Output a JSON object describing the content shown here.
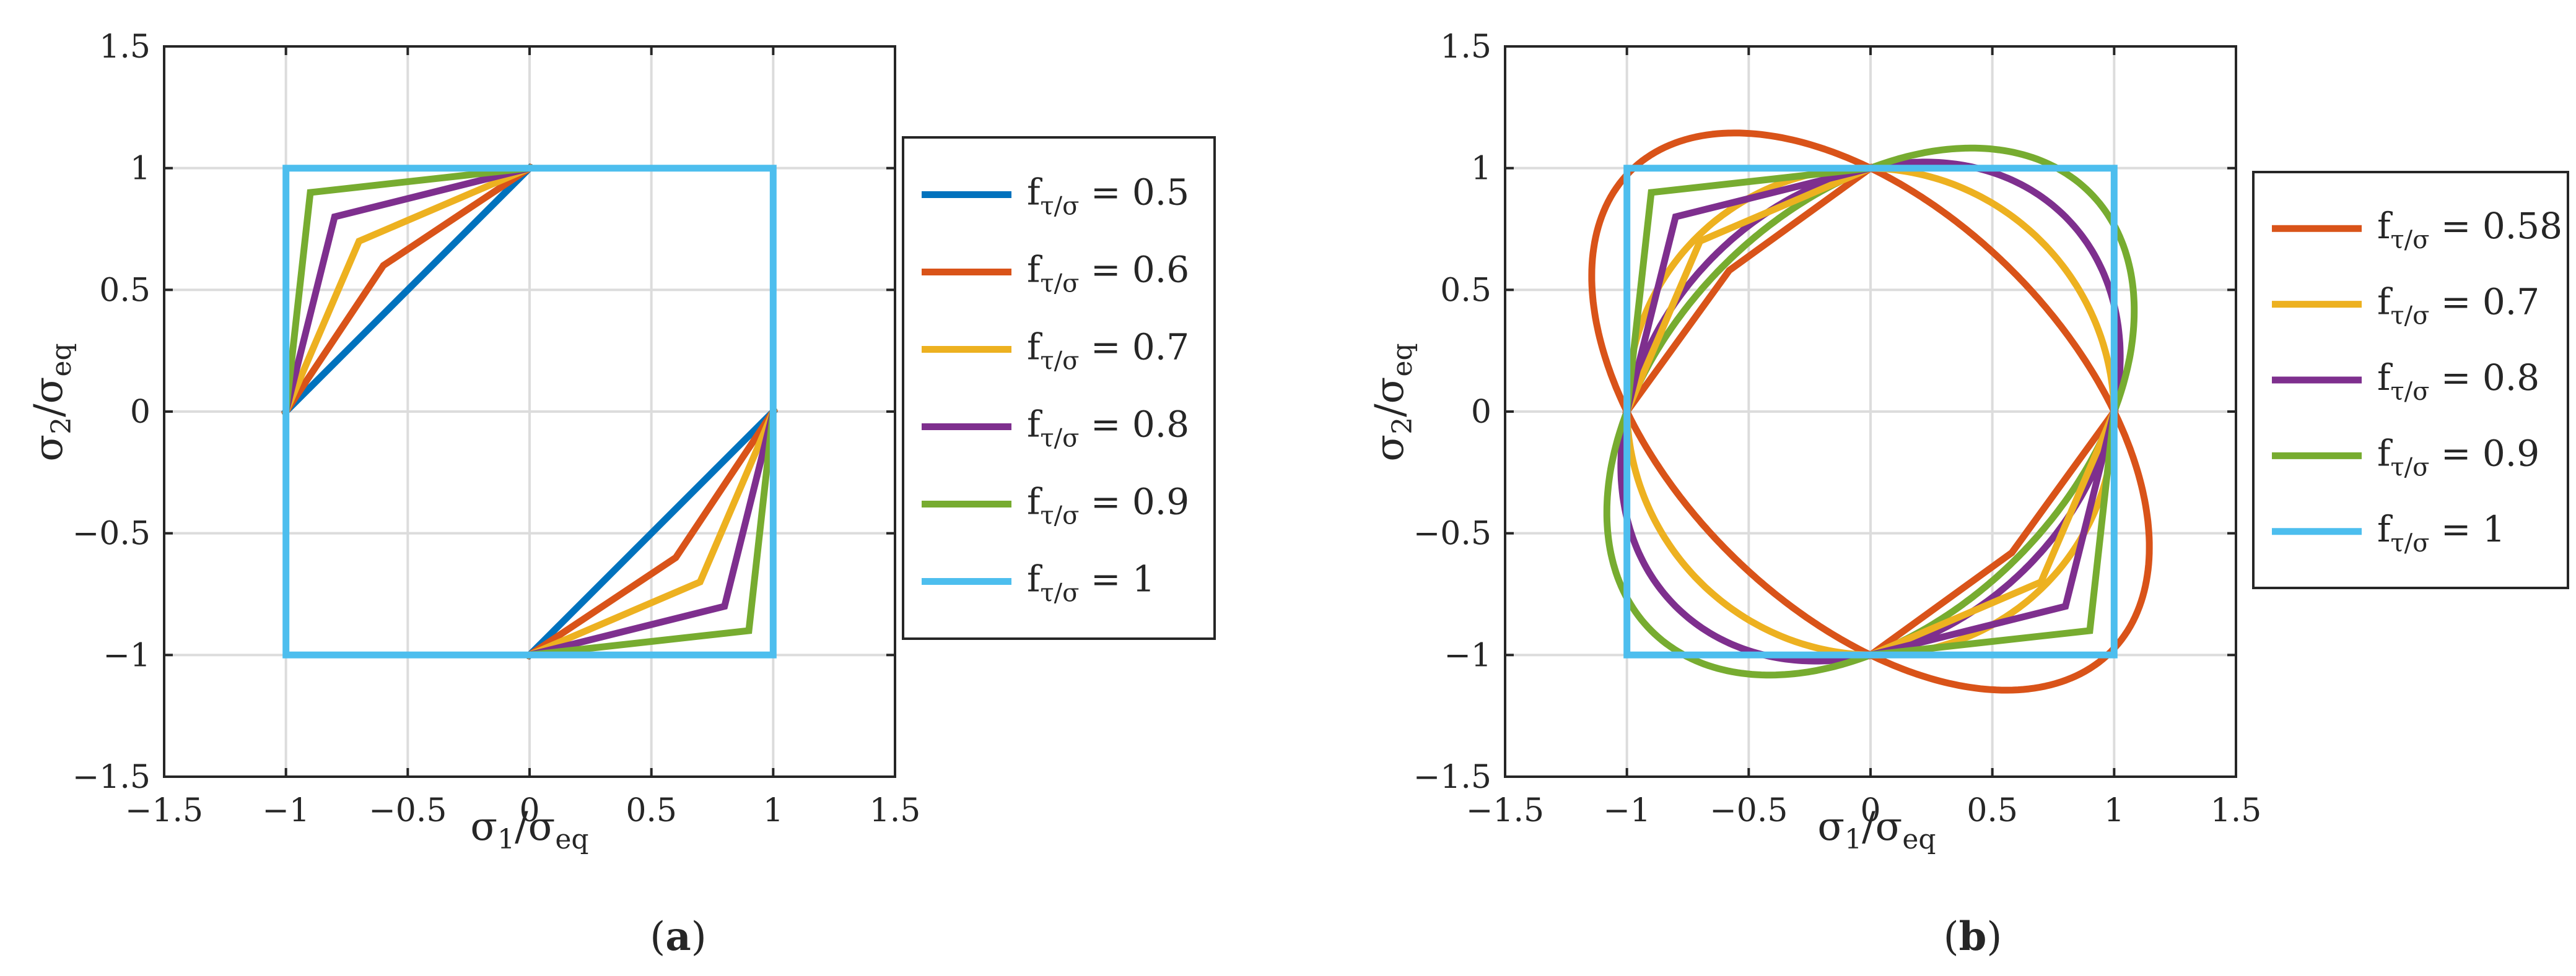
{
  "chart_data": [
    {
      "type": "line",
      "panel_caption": "a",
      "xlabel": {
        "main": "σ",
        "sub1": "1",
        "slash": "/σ",
        "sub2": "eq"
      },
      "ylabel": {
        "main": "σ",
        "sub1": "2",
        "slash": "/σ",
        "sub2": "eq"
      },
      "xlim": [
        -1.5,
        1.5
      ],
      "ylim": [
        -1.5,
        1.5
      ],
      "xticks": [
        "−1.5",
        "−0.5",
        "0",
        "0.5",
        "1",
        "1.5",
        "−1"
      ],
      "xtick_values": [
        -1.5,
        -0.5,
        0,
        0.5,
        1,
        1.5,
        -1
      ],
      "yticks": [
        "−1.5",
        "−1",
        "−0.5",
        "0",
        "0.5",
        "1",
        "1.5"
      ],
      "ytick_values": [
        -1.5,
        -1,
        -0.5,
        0,
        0.5,
        1,
        1.5
      ],
      "grid": true,
      "legend_position": "outside-right",
      "series": [
        {
          "legend_main": "f",
          "legend_sub": "τ/σ",
          "legend_value": " = 0.5",
          "color": "#0072BD",
          "segments": [
            [
              [
                -1,
                0
              ],
              [
                0,
                1
              ]
            ],
            [
              [
                0,
                -1
              ],
              [
                1,
                0
              ]
            ]
          ]
        },
        {
          "legend_main": "f",
          "legend_sub": "τ/σ",
          "legend_value": " = 0.6",
          "color": "#D95319",
          "segments": [
            [
              [
                -1,
                0
              ],
              [
                -0.6,
                0.6
              ],
              [
                0,
                1
              ]
            ],
            [
              [
                0,
                -1
              ],
              [
                0.6,
                -0.6
              ],
              [
                1,
                0
              ]
            ]
          ]
        },
        {
          "legend_main": "f",
          "legend_sub": "τ/σ",
          "legend_value": " = 0.7",
          "color": "#EDB120",
          "segments": [
            [
              [
                -1,
                0
              ],
              [
                -0.7,
                0.7
              ],
              [
                0,
                1
              ]
            ],
            [
              [
                0,
                -1
              ],
              [
                0.7,
                -0.7
              ],
              [
                1,
                0
              ]
            ]
          ]
        },
        {
          "legend_main": "f",
          "legend_sub": "τ/σ",
          "legend_value": " = 0.8",
          "color": "#7E2F8E",
          "segments": [
            [
              [
                -1,
                0
              ],
              [
                -0.8,
                0.8
              ],
              [
                0,
                1
              ]
            ],
            [
              [
                0,
                -1
              ],
              [
                0.8,
                -0.8
              ],
              [
                1,
                0
              ]
            ]
          ]
        },
        {
          "legend_main": "f",
          "legend_sub": "τ/σ",
          "legend_value": " = 0.9",
          "color": "#77AC30",
          "segments": [
            [
              [
                -1,
                0
              ],
              [
                -0.9,
                0.9
              ],
              [
                0,
                1
              ]
            ],
            [
              [
                0,
                -1
              ],
              [
                0.9,
                -0.9
              ],
              [
                1,
                0
              ]
            ]
          ]
        },
        {
          "legend_main": "f",
          "legend_sub": "τ/σ",
          "legend_value": " = 1",
          "color": "#4DBEEE",
          "segments": [
            [
              [
                -1,
                -1
              ],
              [
                1,
                -1
              ],
              [
                1,
                1
              ],
              [
                -1,
                1
              ],
              [
                -1,
                -1
              ]
            ]
          ]
        }
      ]
    },
    {
      "type": "line",
      "panel_caption": "b",
      "xlabel": {
        "main": "σ",
        "sub1": "1",
        "slash": "/σ",
        "sub2": "eq"
      },
      "ylabel": {
        "main": "σ",
        "sub1": "2",
        "slash": "/σ",
        "sub2": "eq"
      },
      "xlim": [
        -1.5,
        1.5
      ],
      "ylim": [
        -1.5,
        1.5
      ],
      "xticks": [
        "−1.5",
        "−0.5",
        "0",
        "0.5",
        "1",
        "1.5",
        "−1"
      ],
      "xtick_values": [
        -1.5,
        -0.5,
        0,
        0.5,
        1,
        1.5,
        -1
      ],
      "yticks": [
        "−1.5",
        "−1",
        "−0.5",
        "0",
        "0.5",
        "1",
        "1.5"
      ],
      "ytick_values": [
        -1.5,
        -1,
        -0.5,
        0,
        0.5,
        1,
        1.5
      ],
      "grid": true,
      "legend_position": "outside-right",
      "series": [
        {
          "legend_main": "f",
          "legend_sub": "τ/σ",
          "legend_value": " = 0.58",
          "color": "#D95319",
          "ellipse_f": 0.58,
          "segments": [
            [
              [
                -1,
                0
              ],
              [
                -0.58,
                0.58
              ],
              [
                0,
                1
              ]
            ],
            [
              [
                0,
                -1
              ],
              [
                0.58,
                -0.58
              ],
              [
                1,
                0
              ]
            ]
          ]
        },
        {
          "legend_main": "f",
          "legend_sub": "τ/σ",
          "legend_value": " = 0.7",
          "color": "#EDB120",
          "ellipse_f": 0.7,
          "segments": [
            [
              [
                -1,
                0
              ],
              [
                -0.7,
                0.7
              ],
              [
                0,
                1
              ]
            ],
            [
              [
                0,
                -1
              ],
              [
                0.7,
                -0.7
              ],
              [
                1,
                0
              ]
            ]
          ]
        },
        {
          "legend_main": "f",
          "legend_sub": "τ/σ",
          "legend_value": " = 0.8",
          "color": "#7E2F8E",
          "ellipse_f": 0.8,
          "segments": [
            [
              [
                -1,
                0
              ],
              [
                -0.8,
                0.8
              ],
              [
                0,
                1
              ]
            ],
            [
              [
                0,
                -1
              ],
              [
                0.8,
                -0.8
              ],
              [
                1,
                0
              ]
            ]
          ]
        },
        {
          "legend_main": "f",
          "legend_sub": "τ/σ",
          "legend_value": " = 0.9",
          "color": "#77AC30",
          "ellipse_f": 0.9,
          "segments": [
            [
              [
                -1,
                0
              ],
              [
                -0.9,
                0.9
              ],
              [
                0,
                1
              ]
            ],
            [
              [
                0,
                -1
              ],
              [
                0.9,
                -0.9
              ],
              [
                1,
                0
              ]
            ]
          ]
        },
        {
          "legend_main": "f",
          "legend_sub": "τ/σ",
          "legend_value": " = 1",
          "color": "#4DBEEE",
          "segments": [
            [
              [
                -1,
                -1
              ],
              [
                1,
                -1
              ],
              [
                1,
                1
              ],
              [
                -1,
                1
              ],
              [
                -1,
                -1
              ]
            ]
          ]
        }
      ]
    }
  ]
}
